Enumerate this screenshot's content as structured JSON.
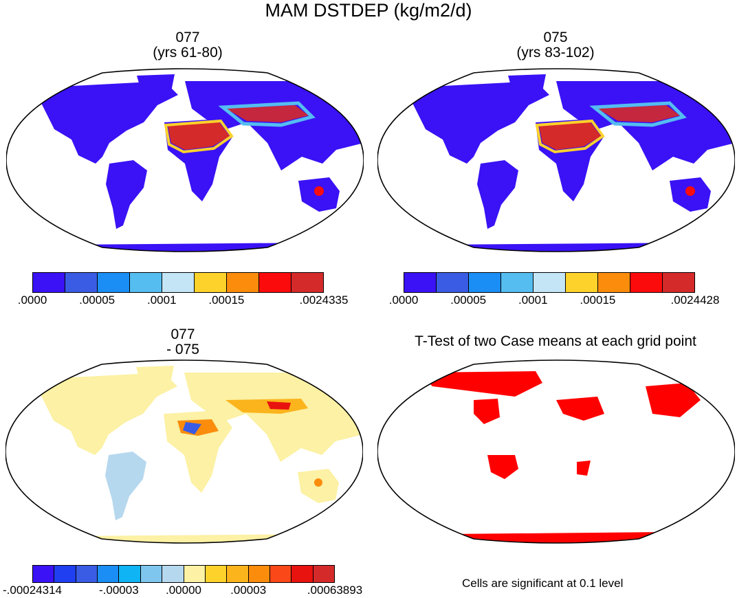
{
  "title": "MAM DSTDEP (kg/m2/d)",
  "panels": [
    {
      "id": "case1",
      "title_line1": "077",
      "title_line2": "(yrs 61-80)",
      "colorbar": {
        "colors": [
          "#3a12f5",
          "#3a5ce4",
          "#1b8ef6",
          "#55bdf0",
          "#c4e5f6",
          "#fdd22b",
          "#fb8c0c",
          "#fb0b0b",
          "#d52a2a"
        ],
        "tick_labels": [
          ".0000",
          ".00005",
          ".0001",
          ".00015",
          ".0024335"
        ]
      }
    },
    {
      "id": "case2",
      "title_line1": "075",
      "title_line2": "(yrs 83-102)",
      "colorbar": {
        "colors": [
          "#3a12f5",
          "#3a5ce4",
          "#1b8ef6",
          "#55bdf0",
          "#c4e5f6",
          "#fdd22b",
          "#fb8c0c",
          "#fb0b0b",
          "#d52a2a"
        ],
        "tick_labels": [
          ".0000",
          ".00005",
          ".0001",
          ".00015",
          ".0024428"
        ]
      }
    },
    {
      "id": "diff",
      "title_line1": "077",
      "title_line2": "- 075",
      "colorbar": {
        "colors": [
          "#3a12f5",
          "#1f3ff0",
          "#3a5ce4",
          "#1b8ef6",
          "#0fb4f5",
          "#7fc6ee",
          "#b6d8ee",
          "#fcf1a4",
          "#fdd22b",
          "#fbb41c",
          "#fb8c0c",
          "#fb4818",
          "#e8120f",
          "#d52a2a"
        ],
        "tick_labels": [
          "-.00024314",
          "-.00003",
          ".00000",
          ".00003",
          ".00063893"
        ]
      }
    },
    {
      "id": "ttest",
      "title": "T-Test of two Case means at each grid point",
      "note": "Cells are significant at 0.1 level",
      "colors": {
        "significant": "#ff0000"
      }
    }
  ]
}
